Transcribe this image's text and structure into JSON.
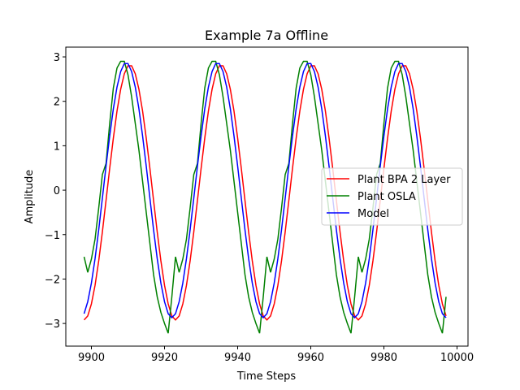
{
  "chart_data": {
    "type": "line",
    "title": "Example 7a Offline",
    "xlabel": "Time Steps",
    "ylabel": "Amplitude",
    "x": [
      9898,
      9899,
      9900,
      9901,
      9902,
      9903,
      9904,
      9905,
      9906,
      9907,
      9908,
      9909,
      9910,
      9911,
      9912,
      9913,
      9914,
      9915,
      9916,
      9917,
      9918,
      9919,
      9920,
      9921,
      9922,
      9923,
      9924,
      9925,
      9926,
      9927,
      9928,
      9929,
      9930,
      9931,
      9932,
      9933,
      9934,
      9935,
      9936,
      9937,
      9938,
      9939,
      9940,
      9941,
      9942,
      9943,
      9944,
      9945,
      9946,
      9947,
      9948,
      9949,
      9950,
      9951,
      9952,
      9953,
      9954,
      9955,
      9956,
      9957,
      9958,
      9959,
      9960,
      9961,
      9962,
      9963,
      9964,
      9965,
      9966,
      9967,
      9968,
      9969,
      9970,
      9971,
      9972,
      9973,
      9974,
      9975,
      9976,
      9977,
      9978,
      9979,
      9980,
      9981,
      9982,
      9983,
      9984,
      9985,
      9986,
      9987,
      9988,
      9989,
      9990,
      9991,
      9992,
      9993,
      9994,
      9995,
      9996,
      9997
    ],
    "series": [
      {
        "name": "Plant BPA 2 Layer",
        "color": "#ff0000",
        "values": [
          -2.92,
          -2.83,
          -2.56,
          -2.14,
          -1.59,
          -0.94,
          -0.23,
          0.49,
          1.17,
          1.78,
          2.27,
          2.62,
          2.8,
          2.8,
          2.62,
          2.27,
          1.78,
          1.17,
          0.49,
          -0.23,
          -0.94,
          -1.59,
          -2.14,
          -2.56,
          -2.83,
          -2.92,
          -2.83,
          -2.56,
          -2.14,
          -1.59,
          -0.94,
          -0.23,
          0.49,
          1.17,
          1.78,
          2.27,
          2.62,
          2.8,
          2.8,
          2.62,
          2.27,
          1.78,
          1.17,
          0.49,
          -0.23,
          -0.94,
          -1.59,
          -2.14,
          -2.56,
          -2.83,
          -2.92,
          -2.83,
          -2.56,
          -2.14,
          -1.59,
          -0.94,
          -0.23,
          0.49,
          1.17,
          1.78,
          2.27,
          2.62,
          2.8,
          2.8,
          2.62,
          2.27,
          1.78,
          1.17,
          0.49,
          -0.23,
          -0.94,
          -1.59,
          -2.14,
          -2.56,
          -2.83,
          -2.92,
          -2.83,
          -2.56,
          -2.14,
          -1.59,
          -0.94,
          -0.23,
          0.49,
          1.17,
          1.78,
          2.27,
          2.62,
          2.8,
          2.8,
          2.62,
          2.27,
          1.78,
          1.17,
          0.49,
          -0.23,
          -0.94,
          -1.59,
          -2.14,
          -2.56,
          -2.83
        ]
      },
      {
        "name": "Plant OSLA",
        "color": "#008000",
        "values": [
          -1.5,
          -1.85,
          -1.55,
          -1.1,
          -0.4,
          0.35,
          0.6,
          1.5,
          2.3,
          2.75,
          2.9,
          2.9,
          2.6,
          2.1,
          1.5,
          0.9,
          0.2,
          -0.5,
          -1.2,
          -1.9,
          -2.4,
          -2.75,
          -3.0,
          -3.22,
          -2.4,
          -1.5,
          -1.85,
          -1.55,
          -1.1,
          -0.4,
          0.35,
          0.6,
          1.5,
          2.3,
          2.75,
          2.9,
          2.9,
          2.6,
          2.1,
          1.5,
          0.9,
          0.2,
          -0.5,
          -1.2,
          -1.9,
          -2.4,
          -2.75,
          -3.0,
          -3.22,
          -2.4,
          -1.5,
          -1.85,
          -1.55,
          -1.1,
          -0.4,
          0.35,
          0.6,
          1.5,
          2.3,
          2.75,
          2.9,
          2.9,
          2.6,
          2.1,
          1.5,
          0.9,
          0.2,
          -0.5,
          -1.2,
          -1.9,
          -2.4,
          -2.75,
          -3.0,
          -3.22,
          -2.4,
          -1.5,
          -1.85,
          -1.55,
          -1.1,
          -0.4,
          0.35,
          0.6,
          1.5,
          2.3,
          2.75,
          2.9,
          2.9,
          2.6,
          2.1,
          1.5,
          0.9,
          0.2,
          -0.5,
          -1.2,
          -1.9,
          -2.4,
          -2.75,
          -3.0,
          -3.22,
          -2.4
        ]
      },
      {
        "name": "Model",
        "color": "#0000ff",
        "values": [
          -2.78,
          -2.51,
          -2.09,
          -1.54,
          -0.89,
          -0.18,
          0.54,
          1.22,
          1.83,
          2.32,
          2.67,
          2.85,
          2.85,
          2.67,
          2.32,
          1.83,
          1.22,
          0.54,
          -0.18,
          -0.89,
          -1.54,
          -2.09,
          -2.51,
          -2.78,
          -2.87,
          -2.78,
          -2.51,
          -2.09,
          -1.54,
          -0.89,
          -0.18,
          0.54,
          1.22,
          1.83,
          2.32,
          2.67,
          2.85,
          2.85,
          2.67,
          2.32,
          1.83,
          1.22,
          0.54,
          -0.18,
          -0.89,
          -1.54,
          -2.09,
          -2.51,
          -2.78,
          -2.87,
          -2.78,
          -2.51,
          -2.09,
          -1.54,
          -0.89,
          -0.18,
          0.54,
          1.22,
          1.83,
          2.32,
          2.67,
          2.85,
          2.85,
          2.67,
          2.32,
          1.83,
          1.22,
          0.54,
          -0.18,
          -0.89,
          -1.54,
          -2.09,
          -2.51,
          -2.78,
          -2.87,
          -2.78,
          -2.51,
          -2.09,
          -1.54,
          -0.89,
          -0.18,
          0.54,
          1.22,
          1.83,
          2.32,
          2.67,
          2.85,
          2.85,
          2.67,
          2.32,
          1.83,
          1.22,
          0.54,
          -0.18,
          -0.89,
          -1.54,
          -2.09,
          -2.51,
          -2.78,
          -2.87
        ]
      }
    ],
    "xlim": [
      9893,
      10003
    ],
    "xticks": [
      9900,
      9920,
      9940,
      9960,
      9980,
      10000
    ],
    "ylim": [
      -3.51,
      3.22
    ],
    "yticks": [
      {
        "value": -3,
        "label": "−3"
      },
      {
        "value": -2,
        "label": "−2"
      },
      {
        "value": -1,
        "label": "−1"
      },
      0,
      1,
      2,
      3
    ],
    "legend": "center right"
  }
}
